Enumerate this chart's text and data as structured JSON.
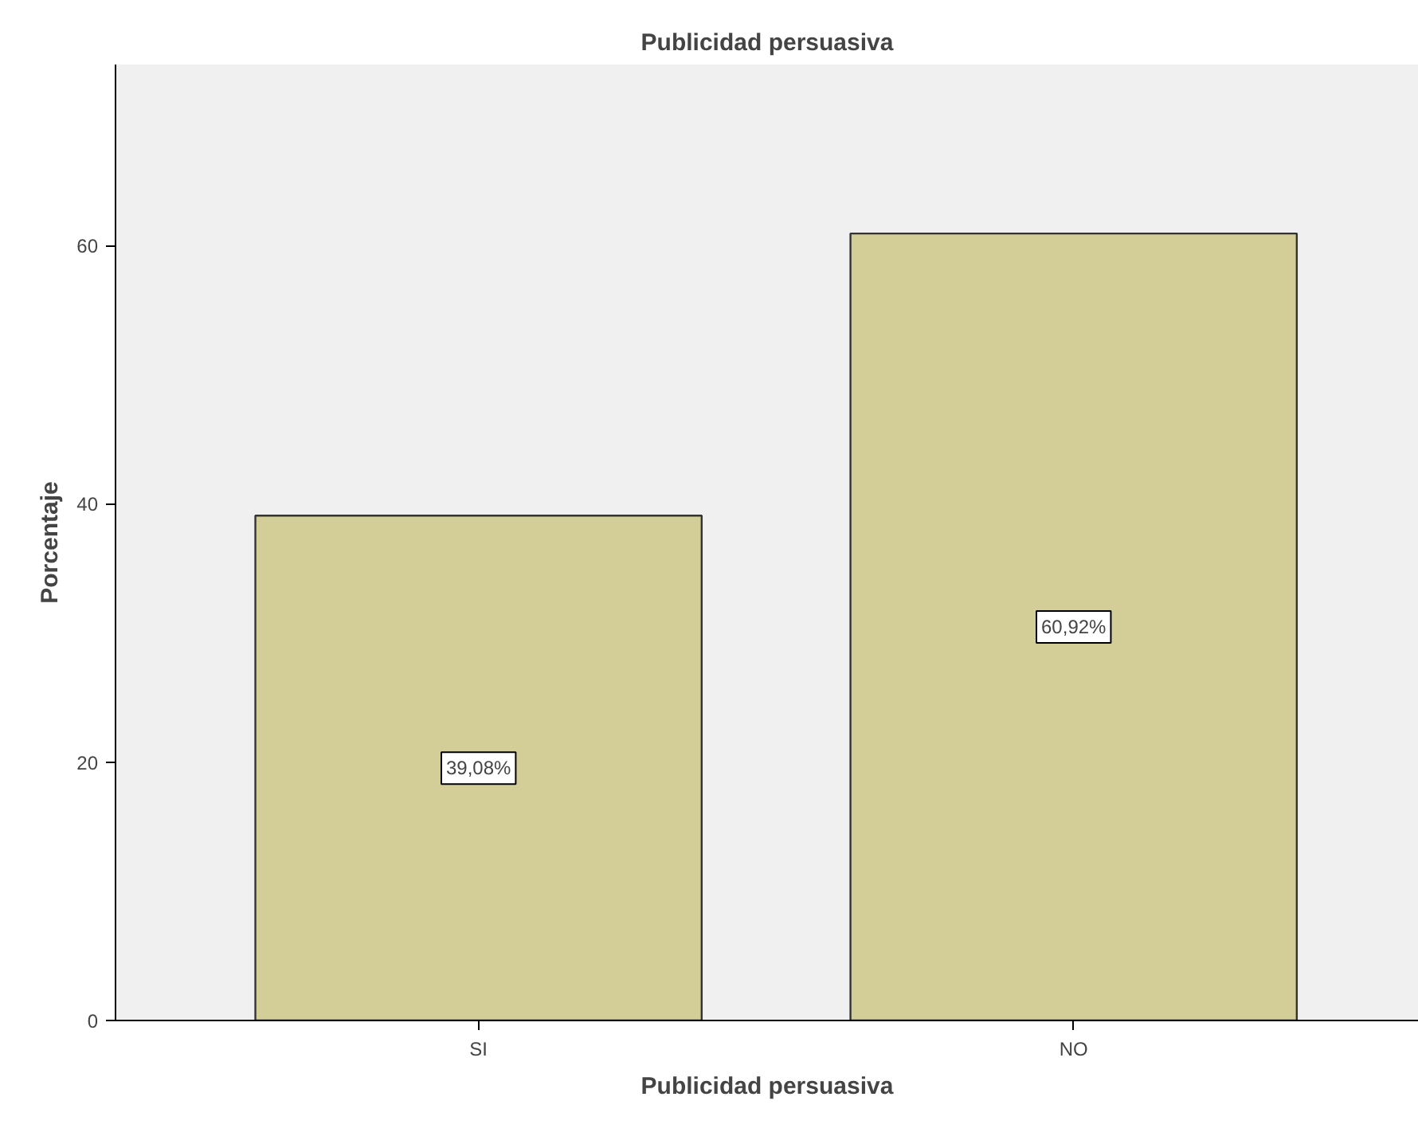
{
  "chart_data": {
    "type": "bar",
    "title": "Publicidad persuasiva",
    "xlabel": "Publicidad persuasiva",
    "ylabel": "Porcentaje",
    "categories": [
      "SI",
      "NO"
    ],
    "values": [
      39.08,
      60.92
    ],
    "value_labels": [
      "39,08%",
      "60,92%"
    ],
    "color": "#d3ce97",
    "ylim": [
      0,
      74
    ],
    "yticks": [
      0,
      20,
      40,
      60
    ],
    "grid": false
  }
}
